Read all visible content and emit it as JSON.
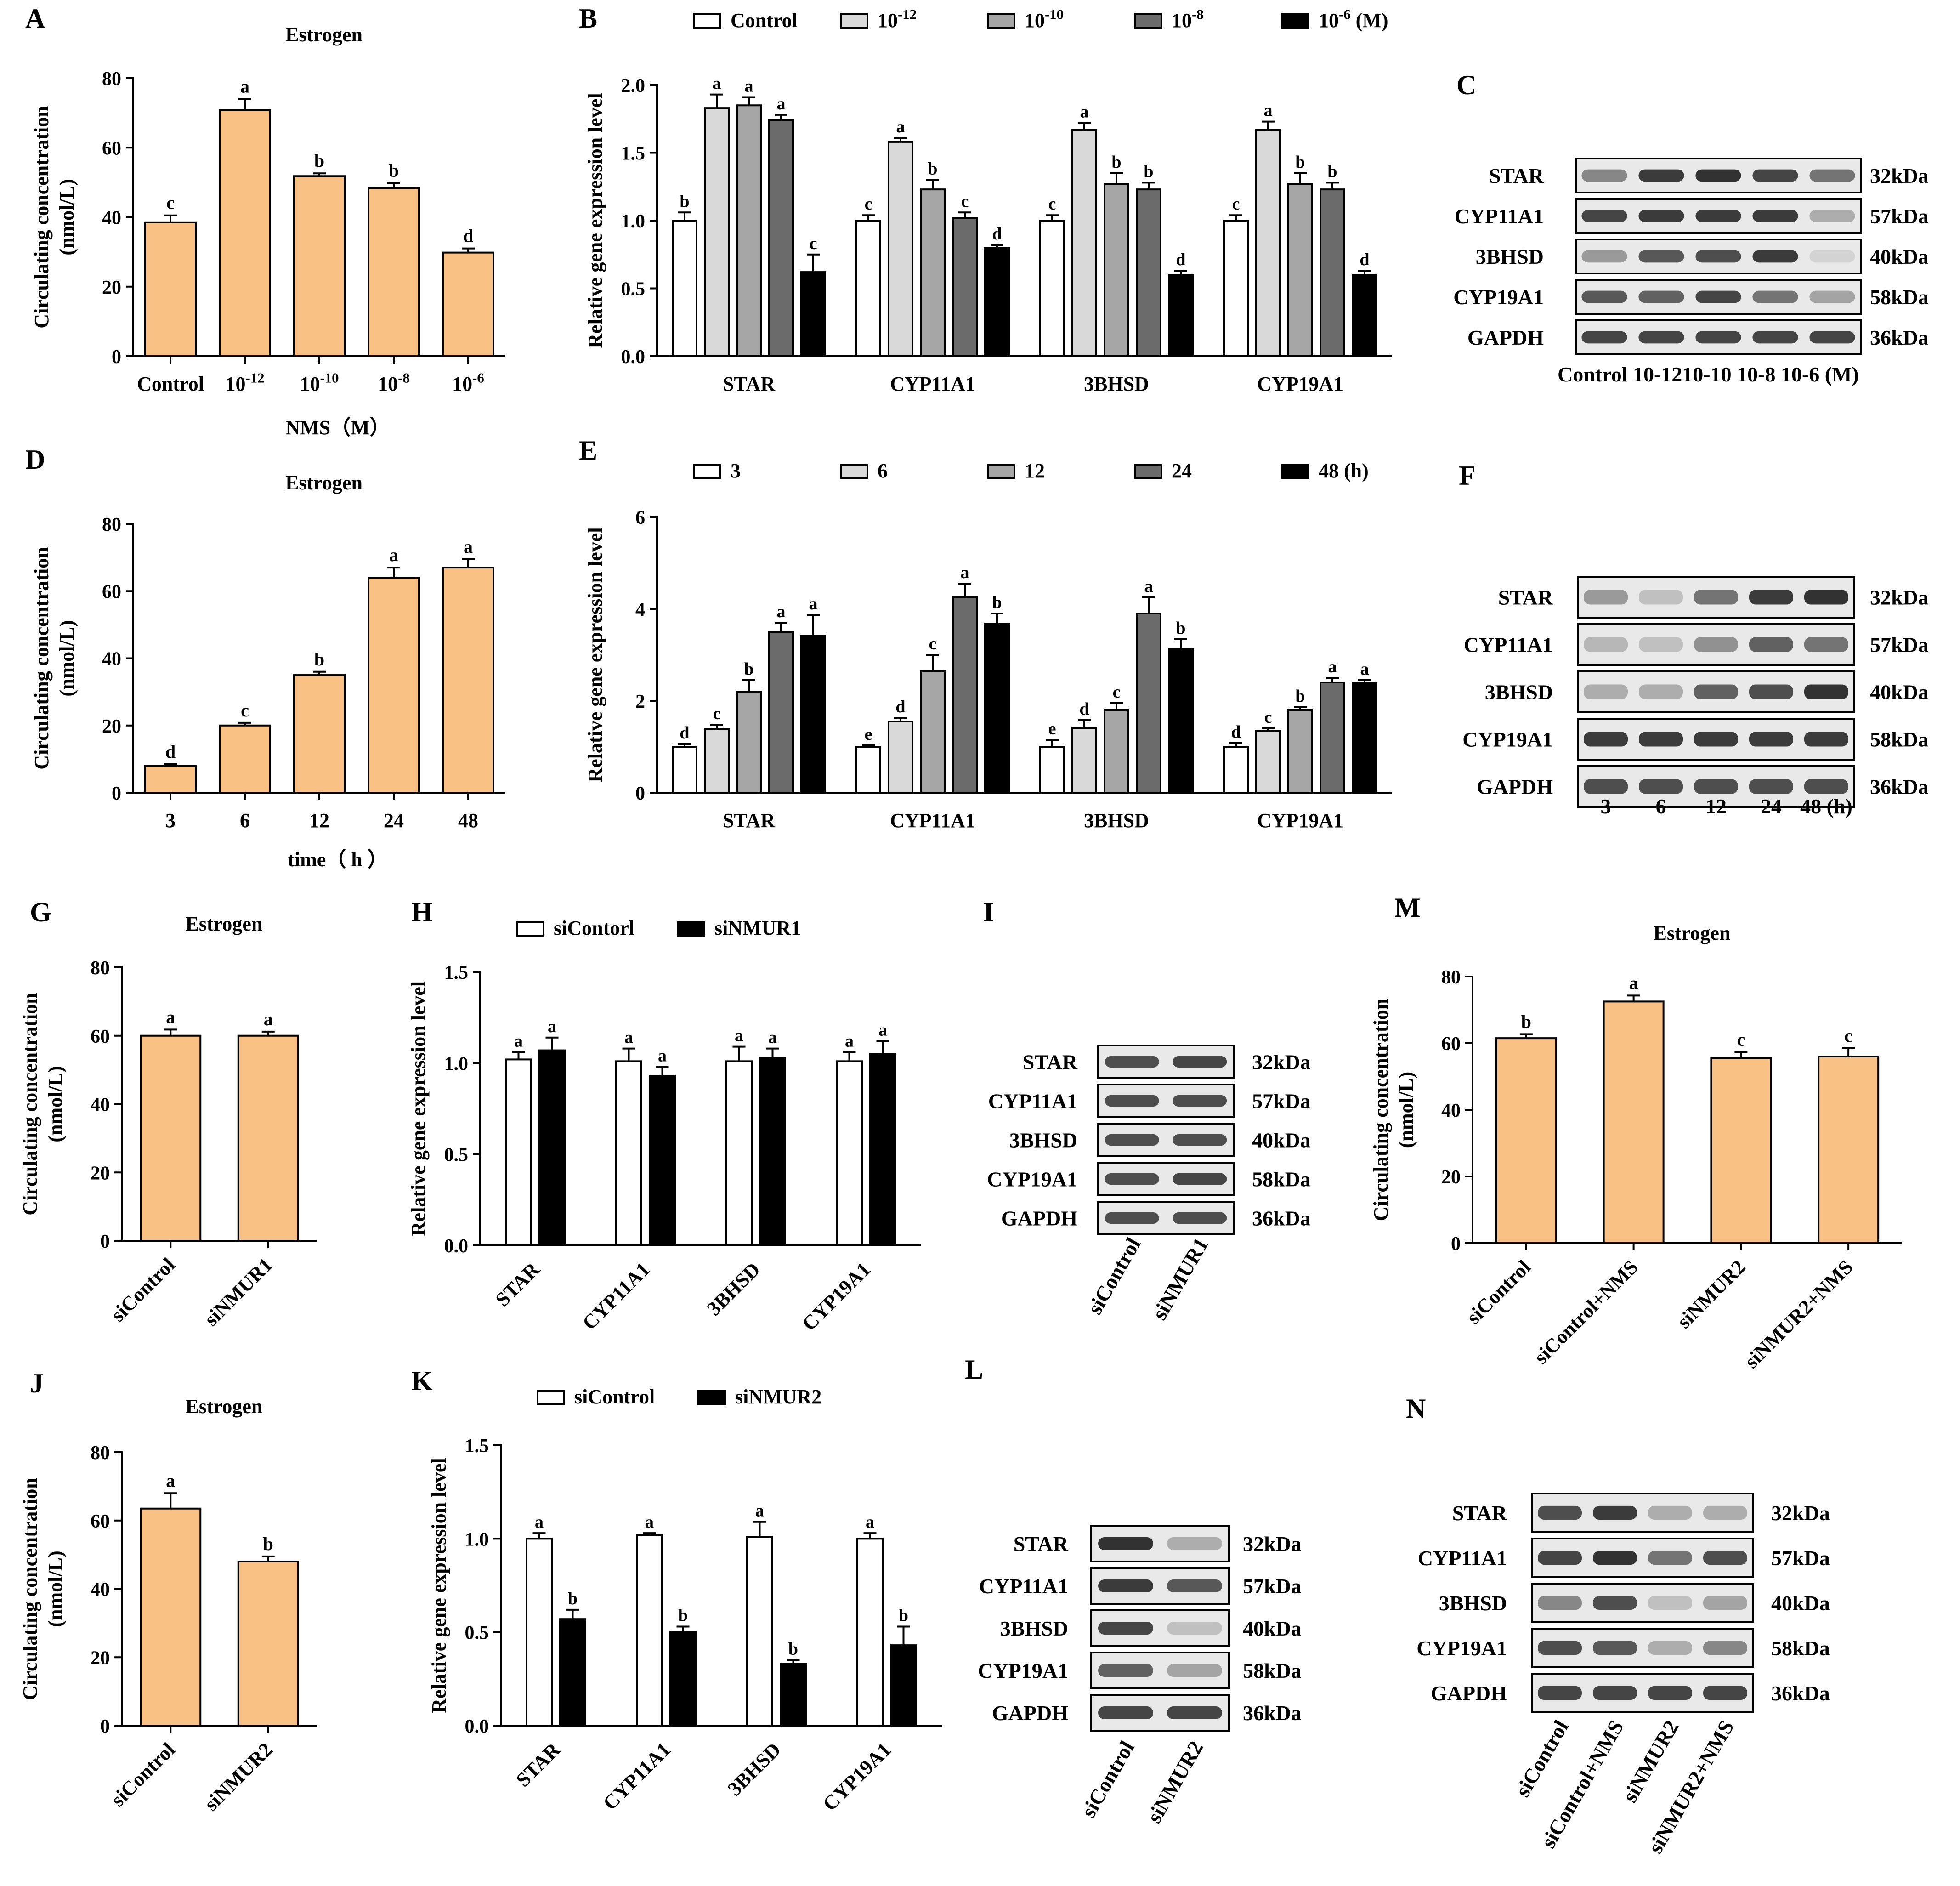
{
  "colors": {
    "bar_orange": "#f9c184",
    "black": "#000000",
    "white": "#ffffff",
    "gray_light": "#d9d9d9",
    "gray_mid": "#a6a6a6",
    "gray_dark": "#6b6b6b"
  },
  "panel_letters": [
    "A",
    "B",
    "C",
    "D",
    "E",
    "F",
    "G",
    "H",
    "I",
    "J",
    "K",
    "L",
    "M",
    "N"
  ],
  "chart_data": [
    {
      "id": "A",
      "type": "bar",
      "title": "Estrogen",
      "ylabel": [
        "Circulating concentration",
        "(nmol/L)"
      ],
      "xlabel": "NMS（M）",
      "categories": [
        "Control",
        "10-12",
        "10-10",
        "10-8",
        "10-6"
      ],
      "values": [
        38.5,
        70.8,
        51.8,
        48.3,
        29.8
      ],
      "errors": [
        2.0,
        3.2,
        0.8,
        1.5,
        1.2
      ],
      "letters": [
        "c",
        "a",
        "b",
        "b",
        "d"
      ],
      "ylim": [
        0,
        80
      ],
      "yticks": [
        0,
        20,
        40,
        60,
        80
      ]
    },
    {
      "id": "B",
      "type": "bar",
      "title": "",
      "ylabel": [
        "Relative gene expression level"
      ],
      "legend": [
        "Control",
        "10-12",
        "10-10",
        "10-8",
        "10-6 (M)"
      ],
      "categories": [
        "STAR",
        "CYP11A1",
        "3BHSD",
        "CYP19A1"
      ],
      "series": [
        {
          "name": "Control",
          "values": [
            1.0,
            1.0,
            1.0,
            1.0
          ],
          "errors": [
            0.06,
            0.04,
            0.04,
            0.04
          ],
          "letters": [
            "b",
            "c",
            "c",
            "c"
          ]
        },
        {
          "name": "10-12",
          "values": [
            1.83,
            1.58,
            1.67,
            1.67
          ],
          "errors": [
            0.1,
            0.03,
            0.05,
            0.06
          ],
          "letters": [
            "a",
            "a",
            "a",
            "a"
          ]
        },
        {
          "name": "10-10",
          "values": [
            1.85,
            1.23,
            1.27,
            1.27
          ],
          "errors": [
            0.06,
            0.07,
            0.08,
            0.08
          ],
          "letters": [
            "a",
            "b",
            "b",
            "b"
          ]
        },
        {
          "name": "10-8",
          "values": [
            1.74,
            1.02,
            1.23,
            1.23
          ],
          "errors": [
            0.04,
            0.04,
            0.05,
            0.05
          ],
          "letters": [
            "a",
            "c",
            "b",
            "b"
          ]
        },
        {
          "name": "10-6",
          "values": [
            0.62,
            0.8,
            0.6,
            0.6
          ],
          "errors": [
            0.13,
            0.02,
            0.03,
            0.03
          ],
          "letters": [
            "c",
            "d",
            "d",
            "d"
          ]
        }
      ],
      "ylim": [
        0,
        2.0
      ],
      "yticks": [
        "0.0",
        "0.5",
        "1.0",
        "1.5",
        "2.0"
      ]
    },
    {
      "id": "D",
      "type": "bar",
      "title": "Estrogen",
      "ylabel": [
        "Circulating concentration",
        "(nmol/L)"
      ],
      "xlabel": "time（ h ）",
      "categories": [
        "3",
        "6",
        "12",
        "24",
        "48"
      ],
      "values": [
        8.0,
        20.0,
        35.0,
        64.0,
        67.0
      ],
      "errors": [
        0.5,
        0.8,
        1.0,
        3.0,
        2.5
      ],
      "letters": [
        "d",
        "c",
        "b",
        "a",
        "a"
      ],
      "ylim": [
        0,
        80
      ],
      "yticks": [
        0,
        20,
        40,
        60,
        80
      ]
    },
    {
      "id": "E",
      "type": "bar",
      "title": "",
      "ylabel": [
        "Relative gene expression level"
      ],
      "legend": [
        "3",
        "6",
        "12",
        "24",
        "48 (h)"
      ],
      "categories": [
        "STAR",
        "CYP11A1",
        "3BHSD",
        "CYP19A1"
      ],
      "series": [
        {
          "name": "3",
          "values": [
            1.0,
            1.0,
            1.0,
            1.0
          ],
          "errors": [
            0.06,
            0.03,
            0.15,
            0.08
          ],
          "letters": [
            "d",
            "e",
            "e",
            "d"
          ]
        },
        {
          "name": "6",
          "values": [
            1.38,
            1.55,
            1.4,
            1.35
          ],
          "errors": [
            0.1,
            0.08,
            0.18,
            0.05
          ],
          "letters": [
            "c",
            "d",
            "d",
            "c"
          ]
        },
        {
          "name": "12",
          "values": [
            2.2,
            2.65,
            1.8,
            1.8
          ],
          "errors": [
            0.25,
            0.35,
            0.15,
            0.06
          ],
          "letters": [
            "b",
            "c",
            "c",
            "b"
          ]
        },
        {
          "name": "24",
          "values": [
            3.5,
            4.25,
            3.9,
            2.4
          ],
          "errors": [
            0.2,
            0.3,
            0.35,
            0.1
          ],
          "letters": [
            "a",
            "a",
            "a",
            "a"
          ]
        },
        {
          "name": "48",
          "values": [
            3.42,
            3.68,
            3.12,
            2.4
          ],
          "errors": [
            0.45,
            0.22,
            0.22,
            0.05
          ],
          "letters": [
            "a",
            "b",
            "b",
            "a"
          ]
        }
      ],
      "ylim": [
        0,
        6
      ],
      "yticks": [
        "0",
        "2",
        "4",
        "6"
      ]
    },
    {
      "id": "G",
      "type": "bar",
      "title": "Estrogen",
      "ylabel": [
        "Circulating concentration",
        "(nmol/L)"
      ],
      "categories": [
        "siControl",
        "siNMUR1"
      ],
      "values": [
        60.0,
        60.0
      ],
      "errors": [
        1.8,
        1.2
      ],
      "letters": [
        "a",
        "a"
      ],
      "ylim": [
        0,
        80
      ],
      "yticks": [
        0,
        20,
        40,
        60,
        80
      ]
    },
    {
      "id": "H",
      "type": "bar",
      "title": "",
      "ylabel": [
        "Relative gene expression level"
      ],
      "legend": [
        "siContorl",
        "siNMUR1"
      ],
      "categories": [
        "STAR",
        "CYP11A1",
        "3BHSD",
        "CYP19A1"
      ],
      "series": [
        {
          "name": "siContorl",
          "values": [
            1.02,
            1.01,
            1.01,
            1.01
          ],
          "errors": [
            0.04,
            0.07,
            0.08,
            0.05
          ],
          "letters": [
            "a",
            "a",
            "a",
            "a"
          ]
        },
        {
          "name": "siNMUR1",
          "values": [
            1.07,
            0.93,
            1.03,
            1.05
          ],
          "errors": [
            0.07,
            0.05,
            0.05,
            0.07
          ],
          "letters": [
            "a",
            "a",
            "a",
            "a"
          ]
        }
      ],
      "ylim": [
        0,
        1.5
      ],
      "yticks": [
        "0.0",
        "0.5",
        "1.0",
        "1.5"
      ]
    },
    {
      "id": "J",
      "type": "bar",
      "title": "Estrogen",
      "ylabel": [
        "Circulating concentration",
        "(nmol/L)"
      ],
      "categories": [
        "siControl",
        "siNMUR2"
      ],
      "values": [
        63.5,
        48.0
      ],
      "errors": [
        4.5,
        1.5
      ],
      "letters": [
        "a",
        "b"
      ],
      "ylim": [
        0,
        80
      ],
      "yticks": [
        0,
        20,
        40,
        60,
        80
      ]
    },
    {
      "id": "K",
      "type": "bar",
      "title": "",
      "ylabel": [
        "Relative gene expression level"
      ],
      "legend": [
        "siControl",
        "siNMUR2"
      ],
      "categories": [
        "STAR",
        "CYP11A1",
        "3BHSD",
        "CYP19A1"
      ],
      "series": [
        {
          "name": "siControl",
          "values": [
            1.0,
            1.02,
            1.01,
            1.0
          ],
          "errors": [
            0.03,
            0.01,
            0.08,
            0.03
          ],
          "letters": [
            "a",
            "a",
            "a",
            "a"
          ]
        },
        {
          "name": "siNMUR2",
          "values": [
            0.57,
            0.5,
            0.33,
            0.43
          ],
          "errors": [
            0.05,
            0.03,
            0.02,
            0.1
          ],
          "letters": [
            "b",
            "b",
            "b",
            "b"
          ]
        }
      ],
      "ylim": [
        0,
        1.5
      ],
      "yticks": [
        "0.0",
        "0.5",
        "1.0",
        "1.5"
      ]
    },
    {
      "id": "M",
      "type": "bar",
      "title": "Estrogen",
      "ylabel": [
        "Circulating concentration",
        "(nmol/L)"
      ],
      "categories": [
        "siControl",
        "siControl+NMS",
        "siNMUR2",
        "siNMUR2+NMS"
      ],
      "values": [
        61.5,
        72.5,
        55.5,
        56.0
      ],
      "errors": [
        1.2,
        1.8,
        1.8,
        2.5
      ],
      "letters": [
        "b",
        "a",
        "c",
        "c"
      ],
      "ylim": [
        0,
        80
      ],
      "yticks": [
        0,
        20,
        40,
        60,
        80
      ]
    }
  ],
  "blots": [
    {
      "id": "C",
      "rows": [
        "STAR",
        "CYP11A1",
        "3BHSD",
        "CYP19A1",
        "GAPDH"
      ],
      "kda": [
        "32kDa",
        "57kDa",
        "40kDa",
        "58kDa",
        "36kDa"
      ],
      "lanes": "Control 10-1210-10 10-8 10-6 (M)",
      "intensity": [
        [
          0.5,
          0.9,
          0.95,
          0.85,
          0.6
        ],
        [
          0.85,
          0.9,
          0.9,
          0.9,
          0.3
        ],
        [
          0.4,
          0.75,
          0.8,
          0.9,
          0.1
        ],
        [
          0.75,
          0.7,
          0.85,
          0.6,
          0.35
        ],
        [
          0.85,
          0.85,
          0.85,
          0.85,
          0.85
        ]
      ]
    },
    {
      "id": "F",
      "rows": [
        "STAR",
        "CYP11A1",
        "3BHSD",
        "CYP19A1",
        "GAPDH"
      ],
      "kda": [
        "32kDa",
        "57kDa",
        "40kDa",
        "58kDa",
        "36kDa"
      ],
      "lanes": [
        "3",
        "6",
        "12",
        "24",
        "48 (h)"
      ],
      "intensity": [
        [
          0.4,
          0.2,
          0.6,
          0.9,
          0.95
        ],
        [
          0.25,
          0.2,
          0.45,
          0.7,
          0.6
        ],
        [
          0.3,
          0.3,
          0.7,
          0.8,
          0.95
        ],
        [
          0.9,
          0.9,
          0.9,
          0.9,
          0.9
        ],
        [
          0.8,
          0.8,
          0.8,
          0.8,
          0.8
        ]
      ]
    },
    {
      "id": "I",
      "rows": [
        "STAR",
        "CYP11A1",
        "3BHSD",
        "CYP19A1",
        "GAPDH"
      ],
      "kda": [
        "32kDa",
        "57kDa",
        "40kDa",
        "58kDa",
        "36kDa"
      ],
      "lanes": [
        "siControl",
        "siNMUR1"
      ],
      "intensity": [
        [
          0.8,
          0.85
        ],
        [
          0.8,
          0.8
        ],
        [
          0.8,
          0.8
        ],
        [
          0.8,
          0.85
        ],
        [
          0.8,
          0.8
        ]
      ]
    },
    {
      "id": "L",
      "rows": [
        "STAR",
        "CYP11A1",
        "3BHSD",
        "CYP19A1",
        "GAPDH"
      ],
      "kda": [
        "32kDa",
        "57kDa",
        "40kDa",
        "58kDa",
        "36kDa"
      ],
      "lanes": [
        "siControl",
        "siNMUR2"
      ],
      "intensity": [
        [
          0.95,
          0.3
        ],
        [
          0.9,
          0.75
        ],
        [
          0.85,
          0.2
        ],
        [
          0.7,
          0.35
        ],
        [
          0.85,
          0.85
        ]
      ]
    },
    {
      "id": "N",
      "rows": [
        "STAR",
        "CYP11A1",
        "3BHSD",
        "CYP19A1",
        "GAPDH"
      ],
      "kda": [
        "32kDa",
        "57kDa",
        "40kDa",
        "58kDa",
        "36kDa"
      ],
      "lanes": [
        "siControl",
        "siControl+NMS",
        "siNMUR2",
        "siNMUR2+NMS"
      ],
      "intensity": [
        [
          0.8,
          0.9,
          0.3,
          0.3
        ],
        [
          0.85,
          0.95,
          0.6,
          0.8
        ],
        [
          0.5,
          0.8,
          0.2,
          0.35
        ],
        [
          0.8,
          0.75,
          0.3,
          0.5
        ],
        [
          0.85,
          0.85,
          0.85,
          0.85
        ]
      ]
    }
  ]
}
